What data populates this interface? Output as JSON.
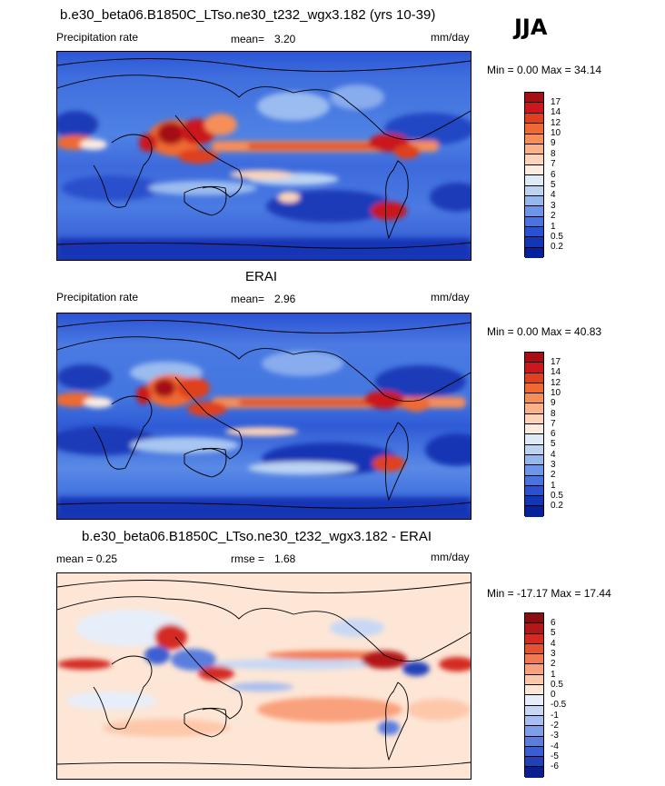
{
  "season": "JJA",
  "panels": [
    {
      "title": "b.e30_beta06.B1850C_LTso.ne30_t232_wgx3.182 (yrs 10-39)",
      "left": "Precipitation rate",
      "stat_label": "mean=",
      "stat_value": "3.20",
      "units": "mm/day",
      "minmax": "Min =   0.00 Max =  34.14",
      "colorbar": {
        "labels": [
          "17",
          "14",
          "12",
          "10",
          "9",
          "8",
          "7",
          "6",
          "5",
          "4",
          "3",
          "2",
          "1",
          "0.5",
          "0.2"
        ],
        "colors": [
          "#a50f15",
          "#cb181d",
          "#e0401e",
          "#ef6a32",
          "#f68e5a",
          "#fbb28a",
          "#fdd3b9",
          "#fcece0",
          "#deebf7",
          "#bcd4f2",
          "#94b7ee",
          "#6d96ea",
          "#4873e0",
          "#2852d1",
          "#1236b5",
          "#06229a"
        ]
      }
    },
    {
      "title": "ERAI",
      "left": "Precipitation rate",
      "stat_label": "mean=",
      "stat_value": "2.96",
      "units": "mm/day",
      "minmax": "Min =   0.00 Max =  40.83",
      "colorbar": {
        "labels": [
          "17",
          "14",
          "12",
          "10",
          "9",
          "8",
          "7",
          "6",
          "5",
          "4",
          "3",
          "2",
          "1",
          "0.5",
          "0.2"
        ],
        "colors": [
          "#a50f15",
          "#cb181d",
          "#e0401e",
          "#ef6a32",
          "#f68e5a",
          "#fbb28a",
          "#fdd3b9",
          "#fcece0",
          "#deebf7",
          "#bcd4f2",
          "#94b7ee",
          "#6d96ea",
          "#4873e0",
          "#2852d1",
          "#1236b5",
          "#06229a"
        ]
      }
    },
    {
      "title": "b.e30_beta06.B1850C_LTso.ne30_t232_wgx3.182 - ERAI",
      "left": "mean =   0.25",
      "stat_label": "rmse =",
      "stat_value": "1.68",
      "units": "mm/day",
      "minmax": "Min = -17.17 Max =  17.44",
      "colorbar": {
        "labels": [
          "6",
          "5",
          "4",
          "3",
          "2",
          "1",
          "0.5",
          "0",
          "-0.5",
          "-1",
          "-2",
          "-3",
          "-4",
          "-5",
          "-6"
        ],
        "colors": [
          "#8b0d12",
          "#b31818",
          "#d42a20",
          "#e65230",
          "#f27a52",
          "#f9a07c",
          "#fdc7aa",
          "#fde6d6",
          "#e6eefa",
          "#c8d8f4",
          "#a6bef0",
          "#7f9ee8",
          "#5a7ede",
          "#3a5ed2",
          "#2240b8",
          "#0a1e90"
        ]
      }
    }
  ]
}
